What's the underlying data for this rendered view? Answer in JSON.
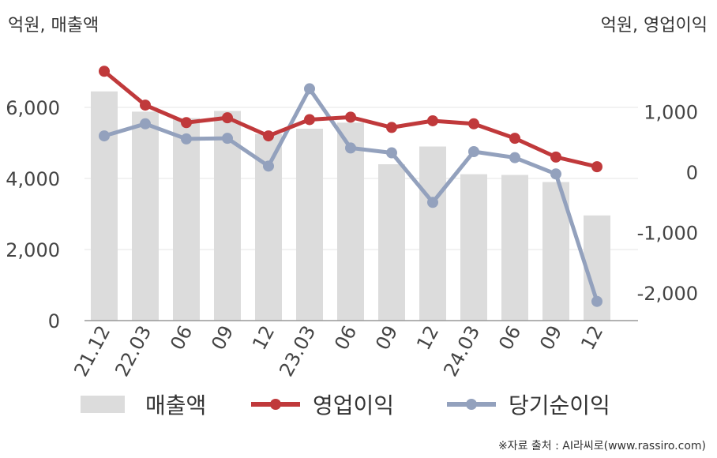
{
  "header": {
    "left_unit": "억원, 매출액",
    "right_unit": "억원, 영업이익"
  },
  "legend": {
    "bars_label": "매출액",
    "line1_label": "영업이익",
    "line2_label": "당기순이익"
  },
  "source": "※자료 출처 : AI라씨로(www.rassiro.com)",
  "colors": {
    "bars": "#dcdcdc",
    "line1": "#c0393b",
    "line2": "#93a1bd",
    "grid": "#e6e6e6",
    "axis": "#999999"
  },
  "chart_data": {
    "type": "bar",
    "categories": [
      "21.12",
      "22.03",
      "06",
      "09",
      "12",
      "23.03",
      "06",
      "09",
      "12",
      "24.03",
      "06",
      "09",
      "12"
    ],
    "left_axis": {
      "ylim": [
        0,
        6000
      ],
      "ticks": [
        0,
        2000,
        4000,
        6000
      ],
      "tick_labels": [
        "0",
        "2,000",
        "4,000",
        "6,000"
      ]
    },
    "right_axis": {
      "ylim": [
        -2500,
        2000
      ],
      "ticks": [
        -2000,
        -1000,
        0,
        1000
      ],
      "tick_labels": [
        "-2,000",
        "-1,000",
        "0",
        "1,000"
      ]
    },
    "series": [
      {
        "name": "매출액",
        "type": "bar",
        "axis": "left",
        "values": [
          6450,
          5880,
          5700,
          5900,
          5250,
          5400,
          5570,
          4400,
          4900,
          4120,
          4100,
          3900,
          2960
        ]
      },
      {
        "name": "영업이익",
        "type": "line",
        "axis": "right",
        "values": [
          1670,
          1110,
          820,
          900,
          600,
          870,
          910,
          740,
          850,
          800,
          560,
          250,
          90
        ]
      },
      {
        "name": "당기순이익",
        "type": "line",
        "axis": "right",
        "values": [
          600,
          800,
          550,
          560,
          100,
          1380,
          400,
          320,
          -500,
          340,
          240,
          -30,
          -2140
        ]
      }
    ],
    "grid": true
  }
}
